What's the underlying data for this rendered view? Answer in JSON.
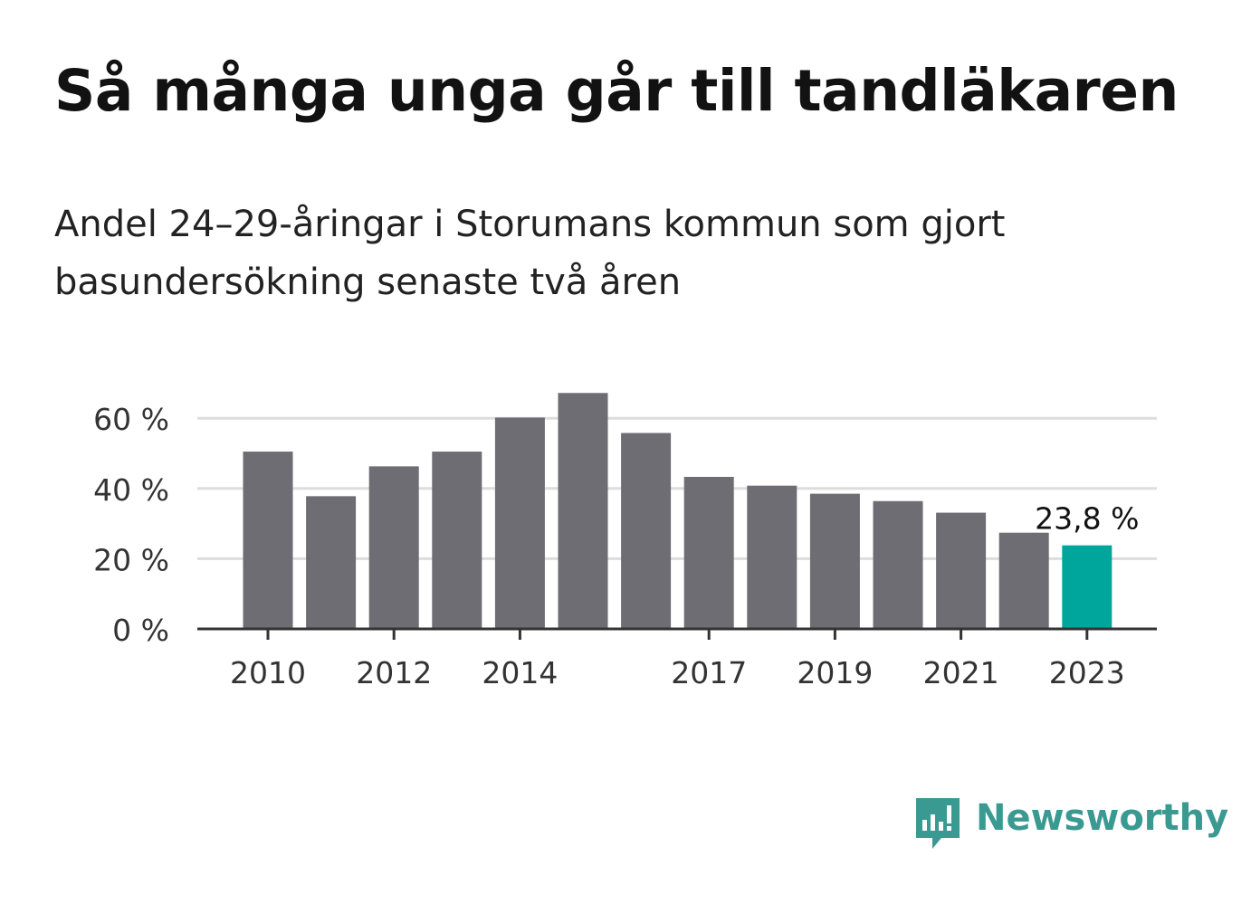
{
  "header": {
    "title": "Så många unga går till tandläkaren",
    "subtitle": "Andel 24–29-åringar i Storumans kommun som gjort basundersökning senaste två åren"
  },
  "brand": {
    "name": "Newsworthy",
    "icon": "newsworthy-logo-icon",
    "color": "#3a9a91"
  },
  "colors": {
    "bar": "#6e6d73",
    "highlight": "#00a59b",
    "grid": "#dddddd",
    "axis": "#333333"
  },
  "chart_data": {
    "type": "bar",
    "title": "Så många unga går till tandläkaren",
    "subtitle": "Andel 24–29-åringar i Storumans kommun som gjort basundersökning senaste två åren",
    "categories": [
      "2010",
      "2011",
      "2012",
      "2013",
      "2014",
      "2015",
      "2016",
      "2017",
      "2018",
      "2019",
      "2020",
      "2021",
      "2022",
      "2023"
    ],
    "values": [
      50.5,
      37.8,
      46.3,
      50.5,
      60.2,
      67.2,
      55.8,
      43.3,
      40.8,
      38.5,
      36.4,
      33.1,
      27.4,
      23.8
    ],
    "highlight_index": 13,
    "annotation": "23,8 %",
    "y_ticks": [
      0,
      20,
      40,
      60
    ],
    "y_tick_labels": [
      "0 %",
      "20 %",
      "40 %",
      "60 %"
    ],
    "x_tick_labels": [
      "2010",
      "2012",
      "2014",
      "2017",
      "2019",
      "2021",
      "2023"
    ],
    "ylim": [
      0,
      70
    ],
    "grid": true,
    "xlabel": "",
    "ylabel": ""
  }
}
